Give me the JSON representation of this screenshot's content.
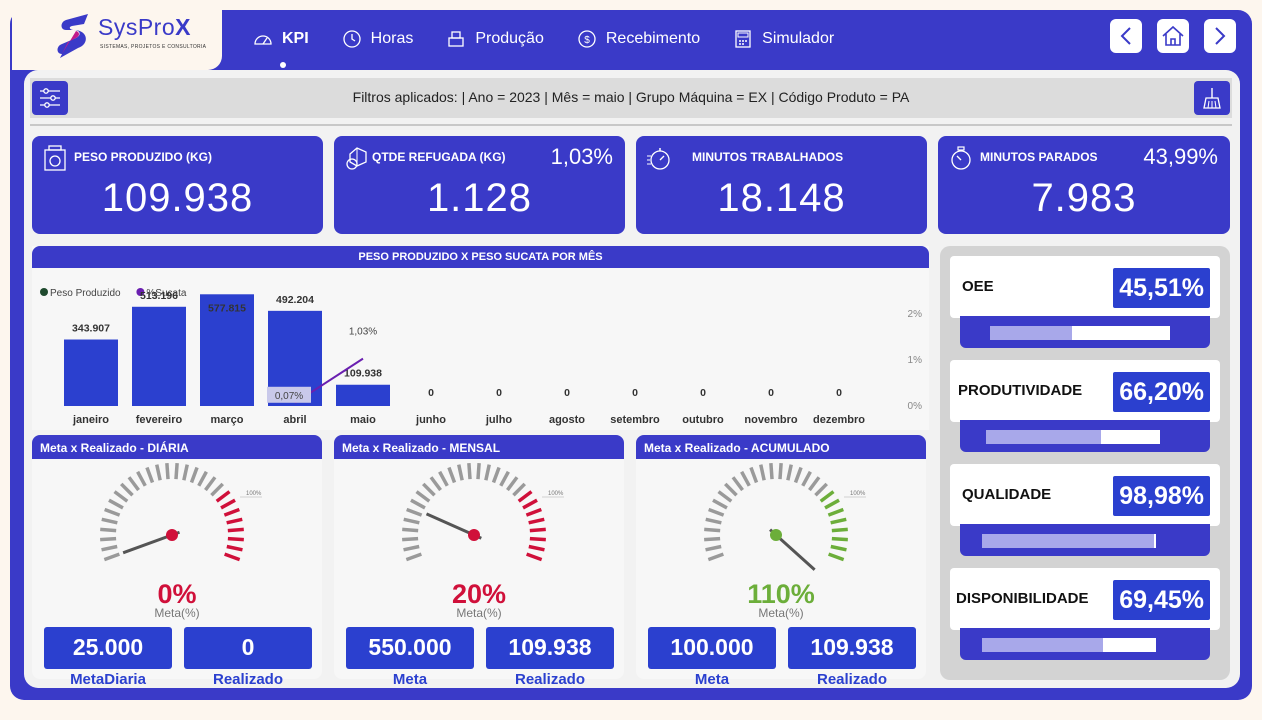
{
  "brand": {
    "name_light": "SysPro",
    "name_bold": "X",
    "tagline": "SISTEMAS, PROJETOS E CONSULTORIA"
  },
  "nav": {
    "tabs": [
      {
        "label": "KPI",
        "icon": "gauge-icon",
        "active": true
      },
      {
        "label": "Horas",
        "icon": "clock-icon",
        "active": false
      },
      {
        "label": "Produção",
        "icon": "production-icon",
        "active": false
      },
      {
        "label": "Recebimento",
        "icon": "money-icon",
        "active": false
      },
      {
        "label": "Simulador",
        "icon": "calculator-icon",
        "active": false
      }
    ]
  },
  "filters": {
    "text": "Filtros aplicados: | Ano = 2023  | Mês = maio  | Grupo Máquina = EX  | Código Produto = PA"
  },
  "kpis": {
    "peso": {
      "title": "PESO PRODUZIDO (KG)",
      "value": "109.938"
    },
    "refugo": {
      "title": "QTDE REFUGADA (KG)",
      "value": "1.128",
      "pct": "1,03%"
    },
    "trabalhados": {
      "title": "MINUTOS TRABALHADOS",
      "value": "18.148"
    },
    "parados": {
      "title": "MINUTOS PARADOS",
      "value": "7.983",
      "pct": "43,99%"
    }
  },
  "chart_data": {
    "type": "bar",
    "title": "PESO PRODUZIDO X PESO SUCATA POR MÊS",
    "categories": [
      "janeiro",
      "fevereiro",
      "março",
      "abril",
      "maio",
      "junho",
      "julho",
      "agosto",
      "setembro",
      "outubro",
      "novembro",
      "dezembro"
    ],
    "series": [
      {
        "name": "Peso Produzido",
        "type": "bar",
        "color": "#2b40cf",
        "values": [
          343907,
          513196,
          577815,
          492204,
          109938,
          0,
          0,
          0,
          0,
          0,
          0,
          0
        ],
        "labels": [
          "343.907",
          "513.196",
          "577.815",
          "492.204",
          "109.938",
          "0",
          "0",
          "0",
          "0",
          "0",
          "0",
          "0"
        ]
      },
      {
        "name": "%Sucata",
        "type": "line",
        "color": "#6a1fb0",
        "values": [
          null,
          null,
          null,
          0.07,
          1.03,
          null,
          null,
          null,
          null,
          null,
          null,
          null
        ],
        "labels": [
          "",
          "",
          "",
          "0,07%",
          "1,03%",
          "",
          "",
          "",
          "",
          "",
          "",
          ""
        ]
      }
    ],
    "ylim": [
      0,
      600000
    ],
    "y2ticks": [
      "2%",
      "1%",
      "0%"
    ],
    "y2lim": [
      0,
      2.0
    ],
    "legend": "top-left"
  },
  "gauges": [
    {
      "title": "Meta x Realizado - DIÁRIA",
      "pct": "0%",
      "pct_value": 0,
      "sub": "Meta(%)",
      "scale_label": "100%",
      "color": "#d0103a",
      "meta_value": "25.000",
      "real_value": "0",
      "meta_label": "MetaDiaria",
      "real_label": "Realizado"
    },
    {
      "title": "Meta x Realizado - MENSAL",
      "pct": "20%",
      "pct_value": 20,
      "sub": "Meta(%)",
      "scale_label": "100%",
      "color": "#d0103a",
      "meta_value": "550.000",
      "real_value": "109.938",
      "meta_label": "Meta",
      "real_label": "Realizado"
    },
    {
      "title": "Meta x Realizado - ACUMULADO",
      "pct": "110%",
      "pct_value": 110,
      "sub": "Meta(%)",
      "scale_label": "100%",
      "color": "#6cae3a",
      "meta_value": "100.000",
      "real_value": "109.938",
      "meta_label": "Meta",
      "real_label": "Realizado"
    }
  ],
  "metrics": [
    {
      "label": "OEE",
      "value": "45,51%",
      "fraction": 0.4551
    },
    {
      "label": "PRODUTIVIDADE",
      "value": "66,20%",
      "fraction": 0.662
    },
    {
      "label": "QUALIDADE",
      "value": "98,98%",
      "fraction": 0.9898
    },
    {
      "label": "DISPONIBILIDADE",
      "value": "69,45%",
      "fraction": 0.6945
    }
  ]
}
